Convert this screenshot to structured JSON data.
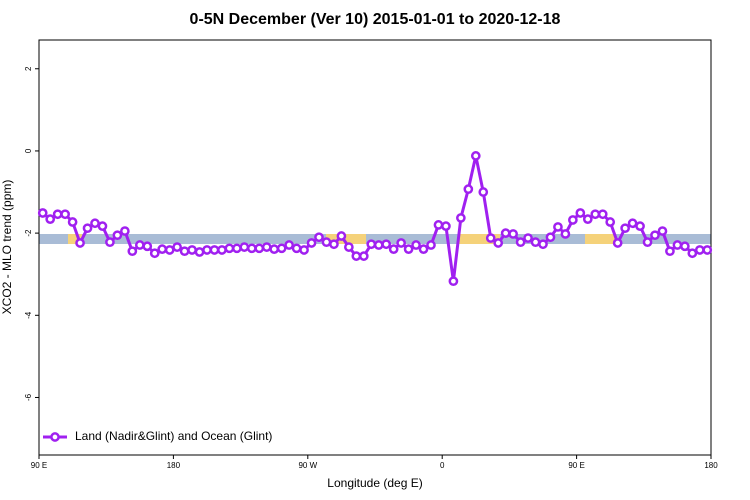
{
  "chart_data": {
    "type": "line",
    "title": "0-5N December (Ver 10)   2015-01-01 to 2020-12-18",
    "x_label": "Longitude (deg E)",
    "y_label": "XCO2 - MLO trend (ppm)",
    "x": [
      92.5,
      97.5,
      102.5,
      107.5,
      112.5,
      117.5,
      122.5,
      127.5,
      132.5,
      137.5,
      142.5,
      147.5,
      152.5,
      157.5,
      162.5,
      167.5,
      172.5,
      177.5,
      182.5,
      187.5,
      192.5,
      197.5,
      202.5,
      207.5,
      212.5,
      217.5,
      222.5,
      227.5,
      232.5,
      237.5,
      242.5,
      247.5,
      252.5,
      257.5,
      262.5,
      267.5,
      272.5,
      277.5,
      282.5,
      287.5,
      292.5,
      297.5,
      302.5,
      307.5,
      312.5,
      317.5,
      322.5,
      327.5,
      332.5,
      337.5,
      342.5,
      347.5,
      352.5,
      357.5,
      362.5,
      367.5,
      372.5,
      377.5,
      382.5,
      387.5,
      392.5,
      397.5,
      402.5,
      407.5,
      412.5,
      417.5,
      422.5,
      427.5,
      432.5,
      437.5,
      442.5,
      447.5,
      452.5,
      457.5,
      462.5,
      467.5,
      472.5,
      477.5,
      482.5,
      487.5,
      492.5,
      497.5,
      502.5,
      507.5,
      512.5,
      517.5,
      522.5,
      527.5,
      532.5,
      537.5
    ],
    "series": [
      {
        "name": "Land (Nadir&Glint) and Ocean (Glint)",
        "color": "#a020f0",
        "values": [
          -1.51,
          -1.66,
          -1.54,
          -1.54,
          -1.73,
          -2.24,
          -1.88,
          -1.76,
          -1.83,
          -2.22,
          -2.05,
          -1.95,
          -2.44,
          -2.29,
          -2.32,
          -2.49,
          -2.39,
          -2.41,
          -2.34,
          -2.44,
          -2.41,
          -2.46,
          -2.41,
          -2.41,
          -2.41,
          -2.37,
          -2.37,
          -2.34,
          -2.37,
          -2.37,
          -2.34,
          -2.39,
          -2.37,
          -2.29,
          -2.37,
          -2.41,
          -2.24,
          -2.1,
          -2.22,
          -2.27,
          -2.07,
          -2.34,
          -2.56,
          -2.56,
          -2.27,
          -2.29,
          -2.27,
          -2.39,
          -2.24,
          -2.39,
          -2.29,
          -2.39,
          -2.29,
          -1.8,
          -1.83,
          -3.17,
          -1.63,
          -0.93,
          -0.12,
          -1.0,
          -2.12,
          -2.24,
          -2.0,
          -2.02,
          -2.22,
          -2.12,
          -2.22,
          -2.27,
          -2.1,
          -1.85,
          -2.02,
          -1.68,
          -1.51,
          -1.66,
          -1.54,
          -1.54,
          -1.73,
          -2.24,
          -1.88,
          -1.76,
          -1.83,
          -2.22,
          -2.05,
          -1.95,
          -2.44,
          -2.29,
          -2.32,
          -2.49,
          -2.41,
          -2.41
        ]
      }
    ],
    "xlim": [
      90,
      540
    ],
    "xticks": [
      {
        "value": 90,
        "label": "90 E"
      },
      180,
      {
        "value": 270,
        "label": "90 W"
      },
      {
        "value": 360,
        "label": "0"
      },
      {
        "value": 450,
        "label": "90 E"
      },
      {
        "value": 540,
        "label": "180"
      }
    ],
    "ylim": [
      -7.4,
      2.7
    ],
    "yticks": [
      -6,
      -4,
      -2,
      0,
      2
    ],
    "legend": "bottom-left"
  }
}
